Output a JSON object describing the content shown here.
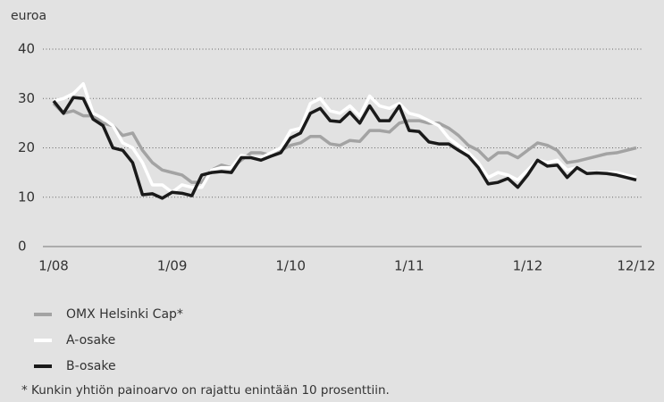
{
  "chart_data": {
    "type": "line",
    "y_label": "euroa",
    "categories": [
      "1/08",
      null,
      null,
      null,
      null,
      null,
      null,
      null,
      null,
      null,
      null,
      null,
      "1/09",
      null,
      null,
      null,
      null,
      null,
      null,
      null,
      null,
      null,
      null,
      null,
      "1/10",
      null,
      null,
      null,
      null,
      null,
      null,
      null,
      null,
      null,
      null,
      null,
      "1/11",
      null,
      null,
      null,
      null,
      null,
      null,
      null,
      null,
      null,
      null,
      null,
      "1/12",
      null,
      null,
      null,
      null,
      null,
      null,
      null,
      null,
      null,
      null,
      "12/12"
    ],
    "series": [
      {
        "name": "OMX Helsinki Cap*",
        "color": "#a3a3a3",
        "values": [
          29,
          27,
          27.5,
          26.5,
          26.5,
          25,
          24.5,
          22.5,
          23,
          19.5,
          17,
          15.5,
          15,
          14.5,
          13,
          13,
          15.5,
          16.5,
          16,
          17.5,
          19,
          19,
          18.5,
          19.5,
          20.5,
          21,
          22.3,
          22.3,
          20.8,
          20.5,
          21.5,
          21.3,
          23.5,
          23.5,
          23.2,
          25,
          25.5,
          25.5,
          25,
          25,
          24,
          22.5,
          20.5,
          19.5,
          17.5,
          19,
          19,
          18,
          19.5,
          21,
          20.5,
          19.5,
          17,
          17.3,
          17.8,
          18.3,
          18.8,
          19,
          19.5,
          20
        ]
      },
      {
        "name": "A-osake",
        "color": "#ffffff",
        "values": [
          29.5,
          30,
          31,
          33,
          27,
          26,
          24.5,
          21,
          20,
          17,
          12.5,
          12.5,
          11,
          12.5,
          12,
          12,
          15.5,
          16,
          16,
          18.5,
          18,
          18,
          19,
          20,
          23.5,
          24,
          29,
          30,
          27.5,
          27,
          28.5,
          26.5,
          30.5,
          28.5,
          28,
          29,
          27,
          26.5,
          25.5,
          24.5,
          22,
          20.5,
          19,
          17,
          14,
          15,
          14.5,
          13.5,
          15.5,
          17.5,
          17,
          17.5,
          15.5,
          16,
          15,
          15,
          15,
          15,
          14.5,
          14
        ]
      },
      {
        "name": "B-osake",
        "color": "#1a1a1a",
        "values": [
          29.5,
          27,
          30.2,
          30,
          25.8,
          24.5,
          20,
          19.5,
          17,
          10.5,
          10.7,
          9.8,
          11,
          10.8,
          10.3,
          14.5,
          15,
          15.2,
          15,
          18,
          18,
          17.5,
          18.3,
          19,
          22,
          23,
          27,
          28,
          25.5,
          25.3,
          27.2,
          25,
          28.5,
          25.5,
          25.5,
          28.5,
          23.5,
          23.3,
          21.2,
          20.8,
          20.8,
          19.5,
          18.3,
          16,
          12.7,
          13,
          13.8,
          12,
          14.5,
          17.5,
          16.3,
          16.5,
          14,
          16,
          14.8,
          14.9,
          14.8,
          14.5,
          14,
          13.5
        ]
      }
    ],
    "ylim": [
      0,
      40
    ],
    "yticks": [
      0,
      10,
      20,
      30,
      40
    ],
    "grid": true,
    "footnote": "*  Kunkin yhtiön painoarvo on rajattu enintään 10 prosenttiin."
  }
}
